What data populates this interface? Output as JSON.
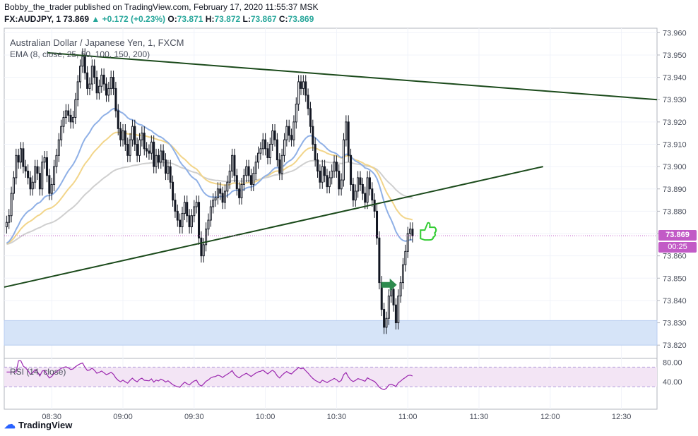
{
  "header": {
    "publisher_line": "Bobby_the_trader published on TradingView.com, February 17, 2020 11:55:37 MSK",
    "symbol": "FX:AUDJPY, 1",
    "last": "73.869",
    "change": "+0.172 (+0.23%)",
    "o_label": "O:",
    "o_value": "73.871",
    "h_label": "H:",
    "h_value": "73.872",
    "l_label": "L:",
    "l_value": "73.867",
    "c_label": "C:",
    "c_value": "73.869"
  },
  "legend": {
    "title": "Australian Dollar / Japanese Yen, 1, FXCM",
    "ema": "EMA (8, close, 25, 50, 100, 150, 200)"
  },
  "rsi_label": "RSI (14, close)",
  "price_tag": "73.869",
  "timer_tag": "00:25",
  "footer": {
    "brand": "TradingView"
  },
  "colors": {
    "candle": "#131722",
    "trendline": "#1b4a1b",
    "ema_blue": "#8fb0e6",
    "ema_yellow": "#f2d58a",
    "ema_gray": "#cfcfcf",
    "zone": "#d6e4f8",
    "rsi": "#9b27af",
    "thumb": "#33cc33",
    "arrow": "#2e8b4e"
  },
  "chart_data": {
    "type": "candlestick",
    "y_axis": {
      "min": 73.815,
      "max": 73.962,
      "ticks": [
        "73.960",
        "73.950",
        "73.940",
        "73.930",
        "73.920",
        "73.910",
        "73.900",
        "73.890",
        "73.880",
        "73.870",
        "73.860",
        "73.850",
        "73.840",
        "73.830",
        "73.820"
      ]
    },
    "x_axis": {
      "ticks": [
        "08:30",
        "09:00",
        "09:30",
        "10:00",
        "10:30",
        "11:00",
        "11:30",
        "12:00",
        "12:30"
      ],
      "tick_minutes": [
        510,
        540,
        570,
        600,
        630,
        660,
        690,
        720,
        750
      ],
      "range_minutes": [
        490,
        765
      ]
    },
    "candle_interval_minutes": 1,
    "closes": [
      73.875,
      73.878,
      73.888,
      73.895,
      73.905,
      73.902,
      73.908,
      73.9,
      73.898,
      73.895,
      73.89,
      73.893,
      73.9,
      73.897,
      73.89,
      73.902,
      73.904,
      73.896,
      73.888,
      73.892,
      73.9,
      73.905,
      73.912,
      73.918,
      73.922,
      73.925,
      73.923,
      73.92,
      73.922,
      73.93,
      73.938,
      73.945,
      73.95,
      73.942,
      73.935,
      73.937,
      73.945,
      73.94,
      73.933,
      73.936,
      73.941,
      73.937,
      73.932,
      73.935,
      73.94,
      73.935,
      73.925,
      73.917,
      73.912,
      73.916,
      73.91,
      73.905,
      73.912,
      73.918,
      73.91,
      73.905,
      73.912,
      73.915,
      73.908,
      73.907,
      73.906,
      73.911,
      73.9,
      73.905,
      73.902,
      73.907,
      73.903,
      73.897,
      73.9,
      73.893,
      73.885,
      73.88,
      73.876,
      73.873,
      73.879,
      73.884,
      73.878,
      73.873,
      73.878,
      73.882,
      73.884,
      73.868,
      73.86,
      73.865,
      73.872,
      73.876,
      73.882,
      73.885,
      73.886,
      73.89,
      73.888,
      73.884,
      73.889,
      73.893,
      73.898,
      73.905,
      73.896,
      73.89,
      73.886,
      73.892,
      73.896,
      73.9,
      73.896,
      73.892,
      73.897,
      73.902,
      73.906,
      73.908,
      73.912,
      73.908,
      73.904,
      73.91,
      73.916,
      73.912,
      73.903,
      73.897,
      73.905,
      73.912,
      73.918,
      73.914,
      73.912,
      73.92,
      73.928,
      73.938,
      73.935,
      73.938,
      73.932,
      73.926,
      73.918,
      73.91,
      73.903,
      73.898,
      73.893,
      73.9,
      73.896,
      73.891,
      73.895,
      73.898,
      73.902,
      73.898,
      73.89,
      73.894,
      73.912,
      73.92,
      73.905,
      73.892,
      73.885,
      73.889,
      73.895,
      73.892,
      73.888,
      73.884,
      73.895,
      73.89,
      73.885,
      73.88,
      73.868,
      73.848,
      73.836,
      73.828,
      73.832,
      73.842,
      73.845,
      73.838,
      73.83,
      73.842,
      73.848,
      73.856,
      73.862,
      73.87,
      73.872,
      73.869
    ],
    "rsi": {
      "ticks": [
        "80.00",
        "40.00"
      ],
      "range": [
        20,
        85
      ],
      "bands": [
        70,
        30
      ]
    },
    "trendlines": [
      {
        "name": "",
        "points": [
          [
            508,
            73.951
          ],
          [
            765,
            73.93
          ]
        ]
      },
      {
        "name": "",
        "points": [
          [
            490,
            73.846
          ],
          [
            717,
            73.9
          ]
        ]
      }
    ],
    "zone": {
      "low": 73.82,
      "high": 73.831
    },
    "current_price": 73.869
  }
}
